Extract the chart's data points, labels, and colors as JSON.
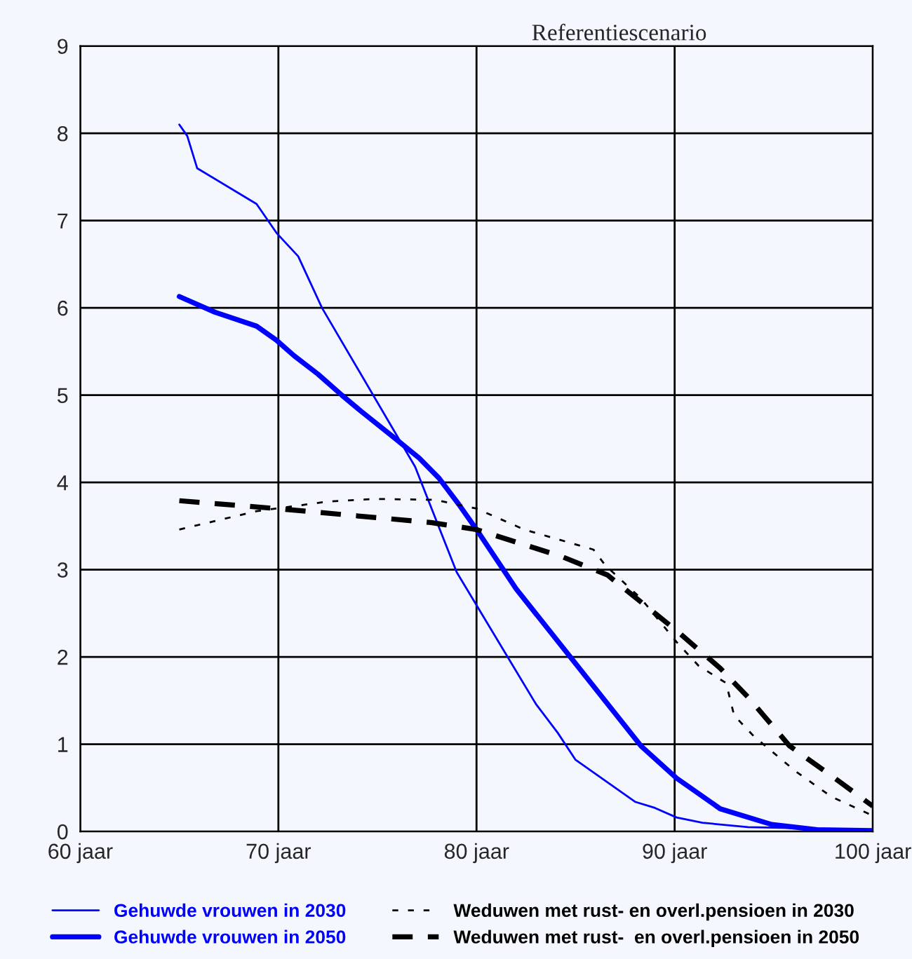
{
  "chart_data": {
    "type": "line",
    "title": "Referentiescenario",
    "xlim": [
      60,
      100
    ],
    "xticks": [
      {
        "value": 60,
        "label": "60 jaar"
      },
      {
        "value": 70,
        "label": "70 jaar"
      },
      {
        "value": 80,
        "label": "80 jaar"
      },
      {
        "value": 90,
        "label": "90 jaar"
      },
      {
        "value": 100,
        "label": "100 jaar"
      }
    ],
    "ylim": [
      0,
      9
    ],
    "yticks": [
      0,
      1,
      2,
      3,
      4,
      5,
      6,
      7,
      8,
      9
    ],
    "grid": true,
    "legend": "bottom",
    "marker": "none",
    "series": [
      {
        "name": "Gehuwde vrouwen in 2030",
        "color": "#0000ff",
        "line_style": "solid",
        "x": [
          65,
          65.4,
          65.9,
          68.9,
          69.9,
          71,
          72.2,
          76.9,
          79,
          81.7,
          83,
          84.1,
          85,
          88,
          89,
          90.1,
          91.4,
          93.7,
          100
        ],
        "values": [
          8.1,
          7.97,
          7.6,
          7.19,
          6.86,
          6.59,
          6.0,
          4.18,
          2.97,
          1.95,
          1.46,
          1.13,
          0.82,
          0.34,
          0.27,
          0.16,
          0.1,
          0.05,
          0.02
        ]
      },
      {
        "name": "Gehuwde vrouwen in 2050",
        "color": "#0000ff",
        "line_style": "solid",
        "x": [
          65,
          66.8,
          68.9,
          69.9,
          70.8,
          72,
          73.2,
          74.2,
          75.8,
          77.1,
          78.1,
          79.1,
          80,
          82,
          84.8,
          86.9,
          88.3,
          90.1,
          92.3,
          94.9,
          97.2,
          100
        ],
        "values": [
          6.13,
          5.95,
          5.79,
          5.63,
          5.45,
          5.24,
          5.0,
          4.81,
          4.52,
          4.28,
          4.05,
          3.75,
          3.46,
          2.78,
          1.98,
          1.38,
          0.98,
          0.61,
          0.26,
          0.08,
          0.02,
          0.01
        ]
      },
      {
        "name": "Weduwen met rust- en overl.pensioen in 2030",
        "color": "#000000",
        "line_style": "dashed",
        "x": [
          65,
          68.9,
          72.5,
          74.9,
          77.9,
          80,
          82.4,
          85.9,
          86.5,
          88.3,
          90.1,
          91.2,
          92.6,
          93,
          94,
          96.1,
          97.9,
          100
        ],
        "values": [
          3.46,
          3.67,
          3.78,
          3.81,
          3.8,
          3.7,
          3.46,
          3.23,
          3.05,
          2.67,
          2.17,
          1.9,
          1.7,
          1.33,
          1.09,
          0.69,
          0.4,
          0.18
        ]
      },
      {
        "name": "Weduwen met rust-  en overl.pensioen in 2050",
        "color": "#000000",
        "line_style": "dashed",
        "x": [
          65,
          69.9,
          77.7,
          80,
          84.3,
          86.6,
          90.1,
          92.3,
          93.7,
          95.8,
          97.9,
          100
        ],
        "values": [
          3.79,
          3.7,
          3.54,
          3.46,
          3.15,
          2.94,
          2.3,
          1.87,
          1.54,
          0.98,
          0.64,
          0.29
        ]
      }
    ]
  }
}
